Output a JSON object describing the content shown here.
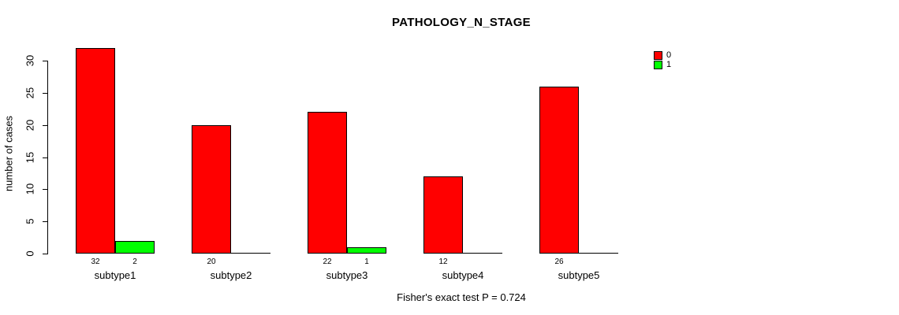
{
  "chart_data": {
    "type": "bar",
    "title": "PATHOLOGY_N_STAGE",
    "ylabel": "number of cases",
    "footer": "Fisher's exact test P = 0.724",
    "categories": [
      "subtype1",
      "subtype2",
      "subtype3",
      "subtype4",
      "subtype5"
    ],
    "series": [
      {
        "name": "0",
        "color": "#FF0000",
        "values": [
          32,
          20,
          22,
          12,
          26
        ],
        "value_labels": [
          "32",
          "20",
          "22",
          "12",
          "26"
        ]
      },
      {
        "name": "1",
        "color": "#00FF00",
        "values": [
          2,
          0,
          1,
          0,
          0
        ],
        "value_labels": [
          "2",
          "",
          "1",
          "",
          ""
        ]
      }
    ],
    "yticks": [
      0,
      5,
      10,
      15,
      20,
      25,
      30
    ],
    "ylim": [
      0,
      32
    ],
    "grid": false,
    "legend_position": "top-right",
    "colors": {
      "background": "#FFFFFF",
      "foreground": "#000000"
    }
  }
}
